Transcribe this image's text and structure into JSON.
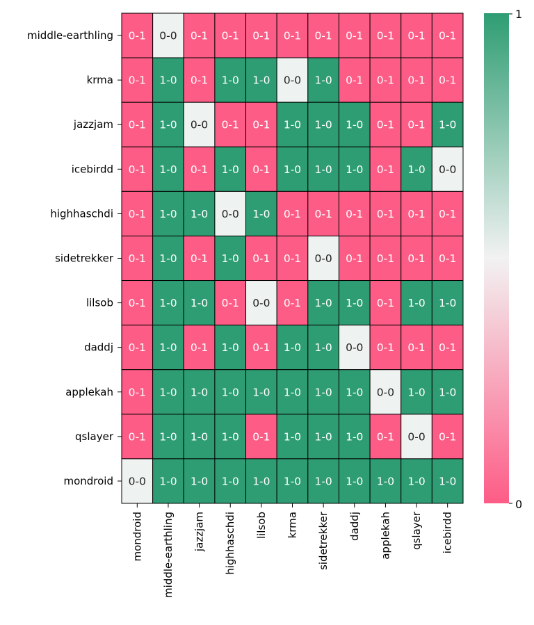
{
  "chart_data": {
    "type": "heatmap",
    "rows": [
      "middle-earthling",
      "krma",
      "jazzjam",
      "icebirdd",
      "highhaschdi",
      "sidetrekker",
      "lilsob",
      "daddj",
      "applekah",
      "qslayer",
      "mondroid"
    ],
    "columns": [
      "mondroid",
      "middle-earthling",
      "jazzjam",
      "highhaschdi",
      "lilsob",
      "krma",
      "sidetrekker",
      "daddj",
      "applekah",
      "qslayer",
      "icebirdd"
    ],
    "cells": [
      [
        "0-1",
        "0-0",
        "0-1",
        "0-1",
        "0-1",
        "0-1",
        "0-1",
        "0-1",
        "0-1",
        "0-1",
        "0-1"
      ],
      [
        "0-1",
        "1-0",
        "0-1",
        "1-0",
        "1-0",
        "0-0",
        "1-0",
        "0-1",
        "0-1",
        "0-1",
        "0-1"
      ],
      [
        "0-1",
        "1-0",
        "0-0",
        "0-1",
        "0-1",
        "1-0",
        "1-0",
        "1-0",
        "0-1",
        "0-1",
        "1-0"
      ],
      [
        "0-1",
        "1-0",
        "0-1",
        "1-0",
        "0-1",
        "1-0",
        "1-0",
        "1-0",
        "0-1",
        "1-0",
        "0-0"
      ],
      [
        "0-1",
        "1-0",
        "1-0",
        "0-0",
        "1-0",
        "0-1",
        "0-1",
        "0-1",
        "0-1",
        "0-1",
        "0-1"
      ],
      [
        "0-1",
        "1-0",
        "0-1",
        "1-0",
        "0-1",
        "0-1",
        "0-0",
        "0-1",
        "0-1",
        "0-1",
        "0-1"
      ],
      [
        "0-1",
        "1-0",
        "1-0",
        "0-1",
        "0-0",
        "0-1",
        "1-0",
        "1-0",
        "0-1",
        "1-0",
        "1-0"
      ],
      [
        "0-1",
        "1-0",
        "0-1",
        "1-0",
        "0-1",
        "1-0",
        "1-0",
        "0-0",
        "0-1",
        "0-1",
        "0-1"
      ],
      [
        "0-1",
        "1-0",
        "1-0",
        "1-0",
        "1-0",
        "1-0",
        "1-0",
        "1-0",
        "0-0",
        "1-0",
        "1-0"
      ],
      [
        "0-1",
        "1-0",
        "1-0",
        "1-0",
        "0-1",
        "1-0",
        "1-0",
        "1-0",
        "0-1",
        "0-0",
        "0-1"
      ],
      [
        "0-0",
        "1-0",
        "1-0",
        "1-0",
        "1-0",
        "1-0",
        "1-0",
        "1-0",
        "1-0",
        "1-0",
        "1-0"
      ]
    ],
    "colorbar": {
      "range": [
        0,
        1
      ],
      "ticks": [
        "1",
        "0"
      ],
      "colors": {
        "low": "#fd5c86",
        "mid": "#f2f2f2",
        "high": "#2e9d73"
      }
    },
    "value_colors": {
      "0-1": "#fd5c86",
      "1-0": "#2e9d73",
      "0-0": "#eef2f0"
    },
    "text_colors": {
      "0-1": "#ffffff",
      "1-0": "#ffffff",
      "0-0": "#222222"
    },
    "grid_color": "#000000"
  }
}
